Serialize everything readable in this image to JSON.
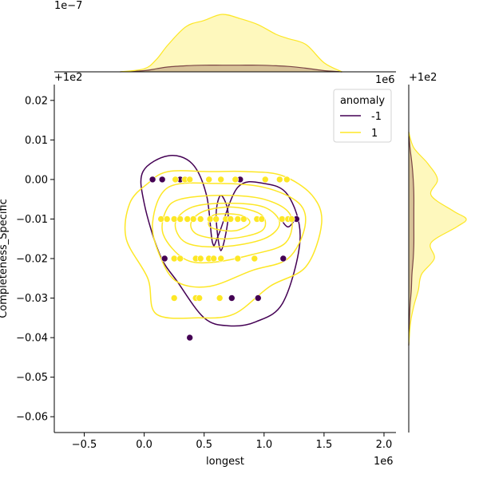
{
  "chart_data": {
    "type": "scatter",
    "xlabel": "longest",
    "ylabel": "Completeness_Specific",
    "x_offset_label": "1e6",
    "y_offset_label": "+1e2",
    "top_marginal_scale_label": "1e−7",
    "top_marginal_offset_label": "+1e2",
    "top_marginal_right_label": "1e6",
    "right_marginal_offset_label": "+1e2",
    "xlim": [
      -0.75,
      2.1
    ],
    "ylim": [
      -0.064,
      0.024
    ],
    "x_ticks": [
      -0.5,
      0.0,
      0.5,
      1.0,
      1.5,
      2.0
    ],
    "x_tick_labels": [
      "−0.5",
      "0.0",
      "0.5",
      "1.0",
      "1.5",
      "2.0"
    ],
    "y_ticks": [
      0.02,
      0.01,
      0.0,
      -0.01,
      -0.02,
      -0.03,
      -0.04,
      -0.05,
      -0.06
    ],
    "y_tick_labels": [
      "0.02",
      "0.01",
      "0.00",
      "−0.01",
      "−0.02",
      "−0.03",
      "−0.04",
      "−0.05",
      "−0.06"
    ],
    "grid": false,
    "legend": {
      "title": "anomaly",
      "placement": "top-right",
      "entries": [
        {
          "label": "-1",
          "color": "#440154"
        },
        {
          "label": "1",
          "color": "#fde725"
        }
      ]
    },
    "series": [
      {
        "name": "-1",
        "color": "#440154",
        "points": [
          [
            0.07,
            0.0
          ],
          [
            0.15,
            0.0
          ],
          [
            0.3,
            0.0
          ],
          [
            0.8,
            0.0
          ],
          [
            1.27,
            -0.01
          ],
          [
            0.17,
            -0.02
          ],
          [
            1.16,
            -0.02
          ],
          [
            0.73,
            -0.03
          ],
          [
            0.95,
            -0.03
          ],
          [
            0.38,
            -0.04
          ]
        ]
      },
      {
        "name": "1",
        "color": "#fde725",
        "points": [
          [
            0.26,
            0.0
          ],
          [
            0.34,
            0.0
          ],
          [
            0.38,
            0.0
          ],
          [
            0.54,
            0.0
          ],
          [
            0.64,
            0.0
          ],
          [
            0.76,
            0.0
          ],
          [
            1.01,
            0.0
          ],
          [
            1.13,
            0.0
          ],
          [
            1.19,
            0.0
          ],
          [
            0.14,
            -0.01
          ],
          [
            0.19,
            -0.01
          ],
          [
            0.25,
            -0.01
          ],
          [
            0.3,
            -0.01
          ],
          [
            0.36,
            -0.01
          ],
          [
            0.41,
            -0.01
          ],
          [
            0.47,
            -0.01
          ],
          [
            0.55,
            -0.01
          ],
          [
            0.6,
            -0.01
          ],
          [
            0.68,
            -0.01
          ],
          [
            0.72,
            -0.01
          ],
          [
            0.78,
            -0.01
          ],
          [
            0.83,
            -0.01
          ],
          [
            0.94,
            -0.01
          ],
          [
            0.98,
            -0.01
          ],
          [
            1.15,
            -0.01
          ],
          [
            1.2,
            -0.01
          ],
          [
            1.23,
            -0.01
          ],
          [
            0.25,
            -0.02
          ],
          [
            0.3,
            -0.02
          ],
          [
            0.43,
            -0.02
          ],
          [
            0.47,
            -0.02
          ],
          [
            0.54,
            -0.02
          ],
          [
            0.58,
            -0.02
          ],
          [
            0.64,
            -0.02
          ],
          [
            0.78,
            -0.02
          ],
          [
            0.92,
            -0.02
          ],
          [
            0.25,
            -0.03
          ],
          [
            0.43,
            -0.03
          ],
          [
            0.46,
            -0.03
          ],
          [
            0.63,
            -0.03
          ]
        ]
      }
    ],
    "kde_contours": [
      {
        "series": "-1",
        "color": "#440154",
        "levels": [
          [
            [
              0.2,
              0.006
            ],
            [
              0.4,
              0.004
            ],
            [
              0.52,
              -0.004
            ],
            [
              0.57,
              -0.016
            ],
            [
              0.62,
              -0.014
            ],
            [
              0.78,
              -0.002
            ],
            [
              1.0,
              -0.001
            ],
            [
              1.2,
              -0.004
            ],
            [
              1.3,
              -0.015
            ],
            [
              1.16,
              -0.031
            ],
            [
              0.93,
              -0.036
            ],
            [
              0.7,
              -0.037
            ],
            [
              0.5,
              -0.035
            ],
            [
              0.28,
              -0.026
            ],
            [
              0.13,
              -0.019
            ],
            [
              0.0,
              -0.006
            ],
            [
              -0.01,
              0.002
            ]
          ],
          [
            [
              0.6,
              -0.009
            ],
            [
              0.64,
              -0.018
            ],
            [
              0.7,
              -0.009
            ],
            [
              0.64,
              -0.004
            ]
          ],
          [
            [
              1.15,
              -0.01
            ],
            [
              1.25,
              -0.01
            ],
            [
              1.2,
              -0.012
            ]
          ]
        ]
      },
      {
        "series": "1",
        "color": "#fde725",
        "levels": [
          [
            [
              0.2,
              0.002
            ],
            [
              0.55,
              0.002
            ],
            [
              0.85,
              0.002
            ],
            [
              1.15,
              0.001
            ],
            [
              1.4,
              -0.004
            ],
            [
              1.48,
              -0.011
            ],
            [
              1.35,
              -0.022
            ],
            [
              1.05,
              -0.027
            ],
            [
              0.75,
              -0.034
            ],
            [
              0.45,
              -0.035
            ],
            [
              0.1,
              -0.034
            ],
            [
              0.03,
              -0.025
            ],
            [
              -0.15,
              -0.015
            ],
            [
              -0.12,
              -0.006
            ],
            [
              0.03,
              -0.001
            ]
          ],
          [
            [
              0.2,
              -0.002
            ],
            [
              0.6,
              -0.001
            ],
            [
              1.0,
              -0.002
            ],
            [
              1.29,
              -0.006
            ],
            [
              1.34,
              -0.012
            ],
            [
              1.2,
              -0.02
            ],
            [
              0.9,
              -0.023
            ],
            [
              0.55,
              -0.027
            ],
            [
              0.28,
              -0.026
            ],
            [
              0.14,
              -0.02
            ],
            [
              0.07,
              -0.011
            ]
          ],
          [
            [
              0.3,
              -0.005
            ],
            [
              0.65,
              -0.004
            ],
            [
              1.0,
              -0.005
            ],
            [
              1.22,
              -0.009
            ],
            [
              1.18,
              -0.016
            ],
            [
              0.9,
              -0.019
            ],
            [
              0.55,
              -0.021
            ],
            [
              0.33,
              -0.02
            ],
            [
              0.16,
              -0.014
            ],
            [
              0.18,
              -0.008
            ]
          ],
          [
            [
              0.4,
              -0.007
            ],
            [
              0.7,
              -0.006
            ],
            [
              1.0,
              -0.007
            ],
            [
              1.13,
              -0.011
            ],
            [
              1.0,
              -0.015
            ],
            [
              0.65,
              -0.017
            ],
            [
              0.35,
              -0.016
            ],
            [
              0.26,
              -0.011
            ]
          ],
          [
            [
              0.5,
              -0.008
            ],
            [
              0.75,
              -0.007
            ],
            [
              0.98,
              -0.009
            ],
            [
              0.98,
              -0.013
            ],
            [
              0.7,
              -0.015
            ],
            [
              0.45,
              -0.014
            ],
            [
              0.39,
              -0.011
            ]
          ],
          [
            [
              0.58,
              -0.009
            ],
            [
              0.8,
              -0.009
            ],
            [
              0.88,
              -0.011
            ],
            [
              0.75,
              -0.013
            ],
            [
              0.55,
              -0.012
            ]
          ]
        ]
      }
    ],
    "top_marginal": {
      "x": [
        -0.2,
        0.0,
        0.1,
        0.2,
        0.35,
        0.5,
        0.65,
        0.8,
        0.95,
        1.1,
        1.2,
        1.35,
        1.5,
        1.65
      ],
      "series": [
        {
          "name": "-1",
          "color": "#440154",
          "density": [
            0.0,
            0.02,
            0.05,
            0.08,
            0.1,
            0.11,
            0.11,
            0.11,
            0.11,
            0.1,
            0.09,
            0.06,
            0.02,
            0.0
          ]
        },
        {
          "name": "1",
          "color": "#fde725",
          "density": [
            0.0,
            0.05,
            0.2,
            0.45,
            0.75,
            0.85,
            0.95,
            0.88,
            0.78,
            0.62,
            0.55,
            0.45,
            0.15,
            0.0
          ]
        }
      ]
    },
    "right_marginal": {
      "y": [
        0.012,
        0.008,
        0.004,
        0.0,
        -0.004,
        -0.008,
        -0.01,
        -0.012,
        -0.016,
        -0.02,
        -0.024,
        -0.028,
        -0.032,
        -0.036,
        -0.042
      ],
      "series": [
        {
          "name": "-1",
          "color": "#440154",
          "density": [
            0.0,
            0.02,
            0.05,
            0.07,
            0.08,
            0.08,
            0.08,
            0.08,
            0.08,
            0.07,
            0.05,
            0.04,
            0.02,
            0.01,
            0.0
          ]
        },
        {
          "name": "1",
          "color": "#fde725",
          "density": [
            0.0,
            0.08,
            0.3,
            0.45,
            0.35,
            0.7,
            0.9,
            0.75,
            0.35,
            0.4,
            0.2,
            0.15,
            0.08,
            0.03,
            0.0
          ]
        }
      ]
    }
  }
}
